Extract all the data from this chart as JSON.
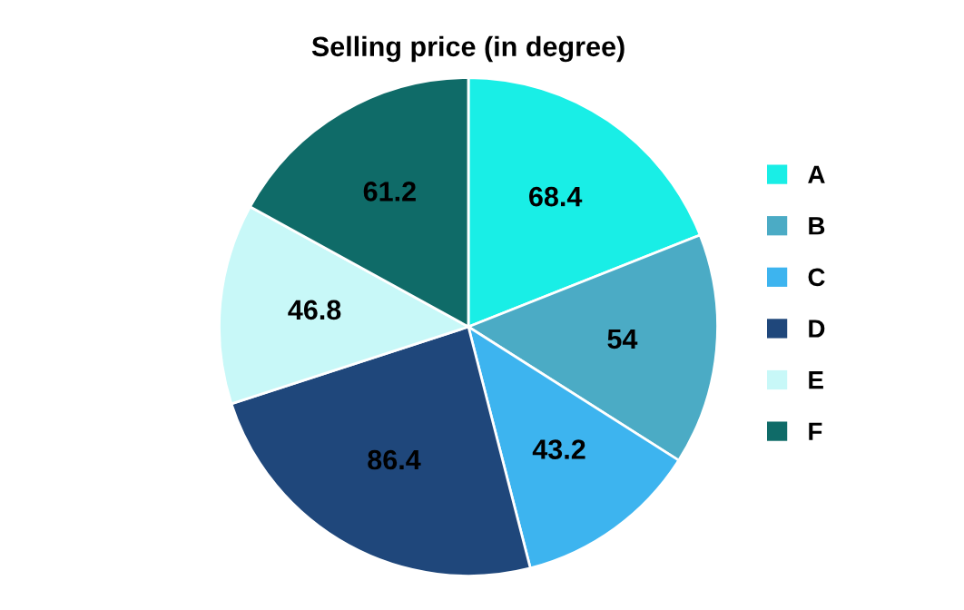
{
  "chart_data": {
    "type": "pie",
    "title": "Selling price (in degree)",
    "categories": [
      "A",
      "B",
      "C",
      "D",
      "E",
      "F"
    ],
    "values": [
      68.4,
      54,
      43.2,
      86.4,
      46.8,
      61.2
    ],
    "colors": [
      "#19eee6",
      "#4babc5",
      "#3db4ef",
      "#1f477b",
      "#c8f8f8",
      "#0f6b68"
    ],
    "data_labels": true,
    "legend": "right"
  }
}
